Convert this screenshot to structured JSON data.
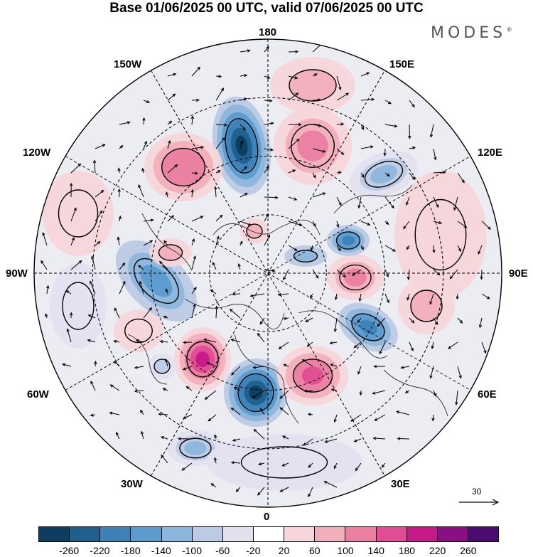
{
  "title": "Base 01/06/2025 00 UTC, valid 07/06/2025 00 UTC",
  "brand": {
    "name": "MODES",
    "mark": "®"
  },
  "longitude_labels": {
    "n180": "180",
    "w150": "150W",
    "e150": "150E",
    "w120": "120W",
    "e120": "120E",
    "w90": "90W",
    "e90": "90E",
    "w60": "60W",
    "e60": "60E",
    "w30": "30W",
    "e30": "30E",
    "n0": "0"
  },
  "vector_reference": {
    "label": "30",
    "icon": "arrow-right-icon"
  },
  "colorbar": {
    "ticks": [
      "-260",
      "-220",
      "-180",
      "-140",
      "-100",
      "-60",
      "-20",
      "20",
      "60",
      "100",
      "140",
      "180",
      "220",
      "260"
    ],
    "colors": [
      "#0d3d5f",
      "#1f5f8c",
      "#3c82b7",
      "#5c9bcd",
      "#8db6dc",
      "#bccbe4",
      "#e4e1ef",
      "#ffffff",
      "#f6d6da",
      "#f1afbb",
      "#ea7fa2",
      "#e04d94",
      "#c6198a",
      "#8b0e84",
      "#4a0c70"
    ]
  }
}
